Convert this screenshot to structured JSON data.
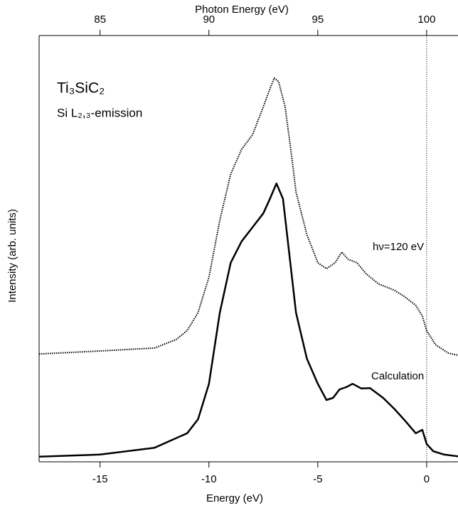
{
  "chart_data": {
    "type": "line",
    "xlabel": "Energy (eV)",
    "x2label": "Photon Energy (eV)",
    "ylabel": "Intensity (arb. units)",
    "annotations": [
      "Ti₃SiC₂",
      "Si L₂,₃-emission"
    ],
    "xlim": [
      -17.8,
      1.44
    ],
    "xticks": [
      -15,
      -10,
      -5,
      0
    ],
    "x2lim": [
      82.2,
      101.44
    ],
    "x2ticks": [
      85,
      90,
      95,
      100
    ],
    "ylim": [
      0,
      100
    ],
    "vline": 0,
    "series": [
      {
        "name": "hν=120 eV",
        "color": "#000000",
        "style": "dotted",
        "x": [
          -17.8,
          -15,
          -12.5,
          -11.5,
          -11,
          -10.5,
          -10,
          -9.5,
          -9,
          -8.5,
          -8,
          -7.5,
          -7.2,
          -7,
          -6.8,
          -6.5,
          -6.2,
          -6,
          -5.5,
          -5,
          -4.6,
          -4.2,
          -3.9,
          -3.6,
          -3.2,
          -2.8,
          -2.2,
          -1.5,
          -1,
          -0.5,
          -0.2,
          0,
          0.4,
          1,
          1.44
        ],
        "values": [
          25.3,
          26,
          26.7,
          28.7,
          30.8,
          35,
          43.3,
          56.7,
          67.5,
          73.3,
          76.7,
          83.3,
          87.5,
          90,
          89.2,
          83.3,
          71.7,
          63.3,
          53.3,
          46.7,
          45.3,
          46.7,
          49.2,
          47.5,
          46.7,
          44.2,
          41.7,
          40.3,
          38.7,
          36.7,
          34.2,
          30.8,
          27.5,
          25.5,
          25
        ]
      },
      {
        "name": "Calculation",
        "color": "#000000",
        "style": "solid",
        "x": [
          -17.8,
          -15,
          -12.5,
          -11,
          -10.5,
          -10,
          -9.5,
          -9,
          -8.5,
          -8,
          -7.5,
          -7.2,
          -6.9,
          -6.6,
          -6.3,
          -6,
          -5.5,
          -5,
          -4.6,
          -4.3,
          -4,
          -3.7,
          -3.4,
          -3,
          -2.6,
          -2,
          -1.5,
          -1,
          -0.5,
          -0.2,
          0,
          0.3,
          0.8,
          1.44
        ],
        "values": [
          1.2,
          1.7,
          3.3,
          6.7,
          10,
          18.3,
          35,
          46.7,
          51.7,
          55,
          58.3,
          61.7,
          65.3,
          61.7,
          48.3,
          35,
          24.2,
          18.3,
          14.5,
          15,
          17,
          17.5,
          18.3,
          17.2,
          17.3,
          15,
          12.5,
          9.7,
          6.7,
          7.5,
          4.2,
          2.5,
          1.7,
          1.3
        ]
      }
    ]
  }
}
